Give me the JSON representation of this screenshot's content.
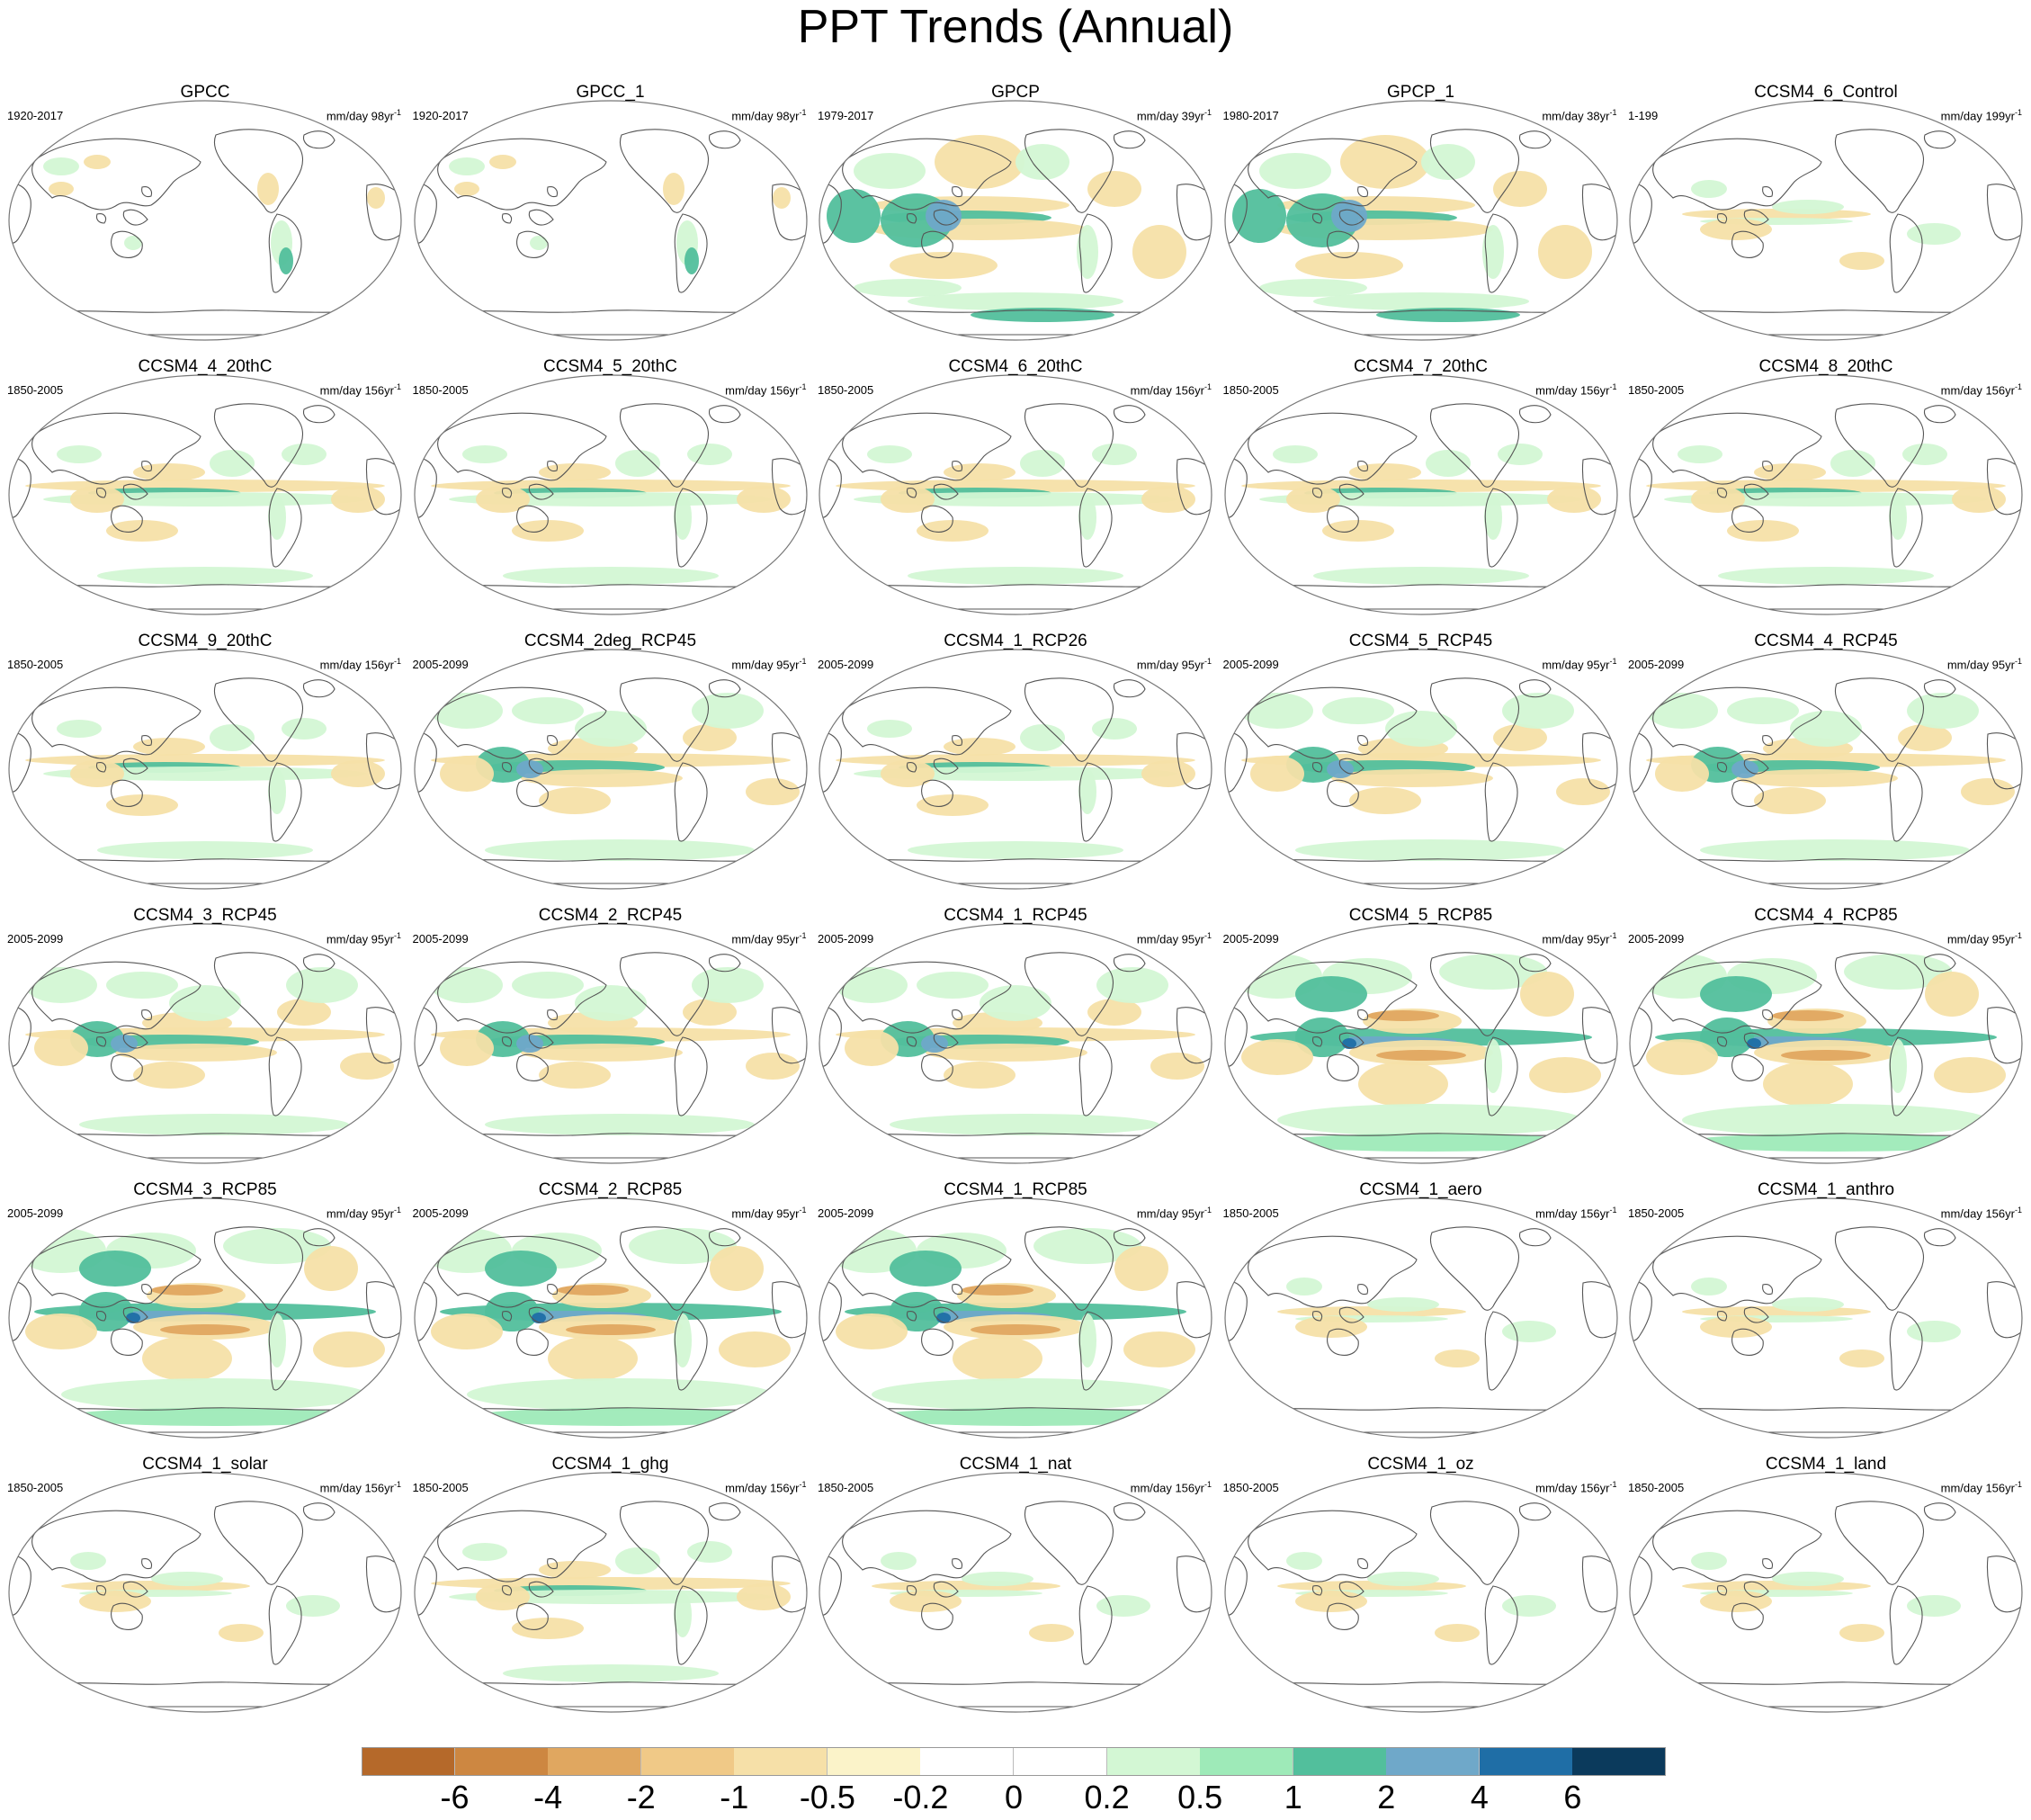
{
  "title": "PPT Trends (Annual)",
  "colors": {
    "land_outline": "#555555",
    "ocean": "#ffffff",
    "scale": [
      "#b5692a",
      "#cd8741",
      "#e0a760",
      "#f0c987",
      "#f6e0a8",
      "#fbf3c9",
      "#ffffff",
      "#ffffff",
      "#d3f7d4",
      "#9eeab8",
      "#52bf9c",
      "#6fa8c9",
      "#1f6ea6",
      "#0b3a5c"
    ]
  },
  "panels": [
    {
      "name": "GPCC",
      "years": "1920-2017",
      "units": "mm/day 98yr",
      "pattern": "obs_land"
    },
    {
      "name": "GPCC_1",
      "years": "1920-2017",
      "units": "mm/day 98yr",
      "pattern": "obs_land"
    },
    {
      "name": "GPCP",
      "years": "1979-2017",
      "units": "mm/day 39yr",
      "pattern": "obs_full"
    },
    {
      "name": "GPCP_1",
      "years": "1980-2017",
      "units": "mm/day 38yr",
      "pattern": "obs_full"
    },
    {
      "name": "CCSM4_6_Control",
      "years": "1-199",
      "units": "mm/day 199yr",
      "pattern": "weak"
    },
    {
      "name": "CCSM4_4_20thC",
      "years": "1850-2005",
      "units": "mm/day 156yr",
      "pattern": "hist"
    },
    {
      "name": "CCSM4_5_20thC",
      "years": "1850-2005",
      "units": "mm/day 156yr",
      "pattern": "hist"
    },
    {
      "name": "CCSM4_6_20thC",
      "years": "1850-2005",
      "units": "mm/day 156yr",
      "pattern": "hist"
    },
    {
      "name": "CCSM4_7_20thC",
      "years": "1850-2005",
      "units": "mm/day 156yr",
      "pattern": "hist"
    },
    {
      "name": "CCSM4_8_20thC",
      "years": "1850-2005",
      "units": "mm/day 156yr",
      "pattern": "hist"
    },
    {
      "name": "CCSM4_9_20thC",
      "years": "1850-2005",
      "units": "mm/day 156yr",
      "pattern": "hist"
    },
    {
      "name": "CCSM4_2deg_RCP45",
      "years": "2005-2099",
      "units": "mm/day 95yr",
      "pattern": "rcp45"
    },
    {
      "name": "CCSM4_1_RCP26",
      "years": "2005-2099",
      "units": "mm/day 95yr",
      "pattern": "hist"
    },
    {
      "name": "CCSM4_5_RCP45",
      "years": "2005-2099",
      "units": "mm/day 95yr",
      "pattern": "rcp45"
    },
    {
      "name": "CCSM4_4_RCP45",
      "years": "2005-2099",
      "units": "mm/day 95yr",
      "pattern": "rcp45"
    },
    {
      "name": "CCSM4_3_RCP45",
      "years": "2005-2099",
      "units": "mm/day 95yr",
      "pattern": "rcp45"
    },
    {
      "name": "CCSM4_2_RCP45",
      "years": "2005-2099",
      "units": "mm/day 95yr",
      "pattern": "rcp45"
    },
    {
      "name": "CCSM4_1_RCP45",
      "years": "2005-2099",
      "units": "mm/day 95yr",
      "pattern": "rcp45"
    },
    {
      "name": "CCSM4_5_RCP85",
      "years": "2005-2099",
      "units": "mm/day 95yr",
      "pattern": "rcp85"
    },
    {
      "name": "CCSM4_4_RCP85",
      "years": "2005-2099",
      "units": "mm/day 95yr",
      "pattern": "rcp85"
    },
    {
      "name": "CCSM4_3_RCP85",
      "years": "2005-2099",
      "units": "mm/day 95yr",
      "pattern": "rcp85"
    },
    {
      "name": "CCSM4_2_RCP85",
      "years": "2005-2099",
      "units": "mm/day 95yr",
      "pattern": "rcp85"
    },
    {
      "name": "CCSM4_1_RCP85",
      "years": "2005-2099",
      "units": "mm/day 95yr",
      "pattern": "rcp85"
    },
    {
      "name": "CCSM4_1_aero",
      "years": "1850-2005",
      "units": "mm/day 156yr",
      "pattern": "weak"
    },
    {
      "name": "CCSM4_1_anthro",
      "years": "1850-2005",
      "units": "mm/day 156yr",
      "pattern": "weak"
    },
    {
      "name": "CCSM4_1_solar",
      "years": "1850-2005",
      "units": "mm/day 156yr",
      "pattern": "weak"
    },
    {
      "name": "CCSM4_1_ghg",
      "years": "1850-2005",
      "units": "mm/day 156yr",
      "pattern": "hist"
    },
    {
      "name": "CCSM4_1_nat",
      "years": "1850-2005",
      "units": "mm/day 156yr",
      "pattern": "weak"
    },
    {
      "name": "CCSM4_1_oz",
      "years": "1850-2005",
      "units": "mm/day 156yr",
      "pattern": "weak"
    },
    {
      "name": "CCSM4_1_land",
      "years": "1850-2005",
      "units": "mm/day 156yr",
      "pattern": "weak"
    }
  ],
  "units_superscript": "-1",
  "colorbar": {
    "labels": [
      "-6",
      "-4",
      "-2",
      "-1",
      "-0.5",
      "-0.2",
      "0",
      "0.2",
      "0.5",
      "1",
      "2",
      "4",
      "6"
    ]
  }
}
